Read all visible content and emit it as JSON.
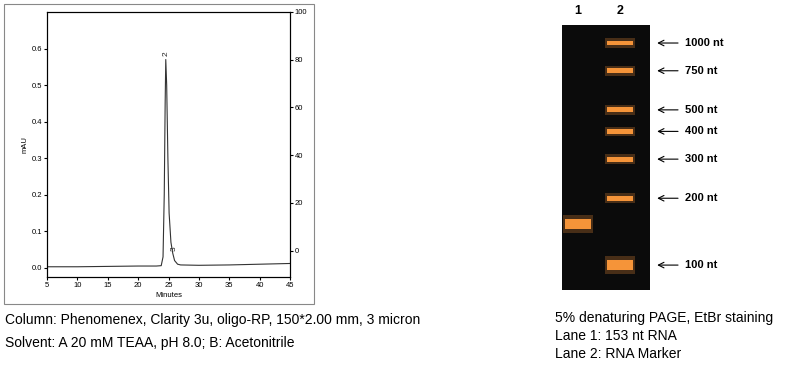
{
  "chart_data": {
    "type": "line",
    "x_label": "Minutes",
    "y_label": "mAU",
    "color": "#333333",
    "x": [
      5,
      10,
      15,
      20,
      23,
      23.8,
      24.1,
      24.3,
      24.45,
      24.55,
      24.7,
      24.9,
      25.1,
      25.4,
      25.7,
      26.0,
      26.5,
      27,
      30,
      35,
      40,
      45
    ],
    "values": [
      0.003,
      0.003,
      0.004,
      0.005,
      0.005,
      0.006,
      0.03,
      0.2,
      0.45,
      0.57,
      0.5,
      0.3,
      0.15,
      0.07,
      0.04,
      0.02,
      0.01,
      0.008,
      0.007,
      0.008,
      0.01,
      0.012
    ],
    "annotations": [
      {
        "text": "2",
        "x": 24.55,
        "y": 0.58
      },
      {
        "text": "3",
        "x": 25.9,
        "y": 0.045
      }
    ],
    "xlim": [
      5,
      45
    ],
    "xticks": [
      5,
      10,
      15,
      20,
      25,
      30,
      35,
      40,
      45
    ],
    "ylim": [
      -0.025,
      0.7
    ],
    "yticks": [
      0.0,
      0.1,
      0.2,
      0.3,
      0.4,
      0.5,
      0.6
    ],
    "y2lim": [
      -11,
      100
    ],
    "y2ticks": [
      0,
      20,
      40,
      60,
      80,
      100
    ]
  },
  "chromatogram_caption": [
    "Column: Phenomenex, Clarity 3u, oligo-RP, 150*2.00 mm, 3 micron",
    "Solvent: A 20 mM TEAA, pH 8.0; B: Acetonitrile"
  ],
  "gel": {
    "lanes": [
      {
        "label": "1",
        "bands": [
          153
        ]
      },
      {
        "label": "2",
        "bands": [
          1000,
          750,
          500,
          400,
          300,
          200,
          100
        ]
      }
    ],
    "marker_labels": [
      "1000 nt",
      "750 nt",
      "500 nt",
      "400 nt",
      "300 nt",
      "200 nt",
      "100 nt"
    ],
    "band_color": "#ff9a3c",
    "background": "#0b0b0b",
    "caption": [
      "5% denaturing PAGE, EtBr staining",
      "Lane 1: 153 nt RNA",
      "Lane 2: RNA Marker"
    ]
  }
}
